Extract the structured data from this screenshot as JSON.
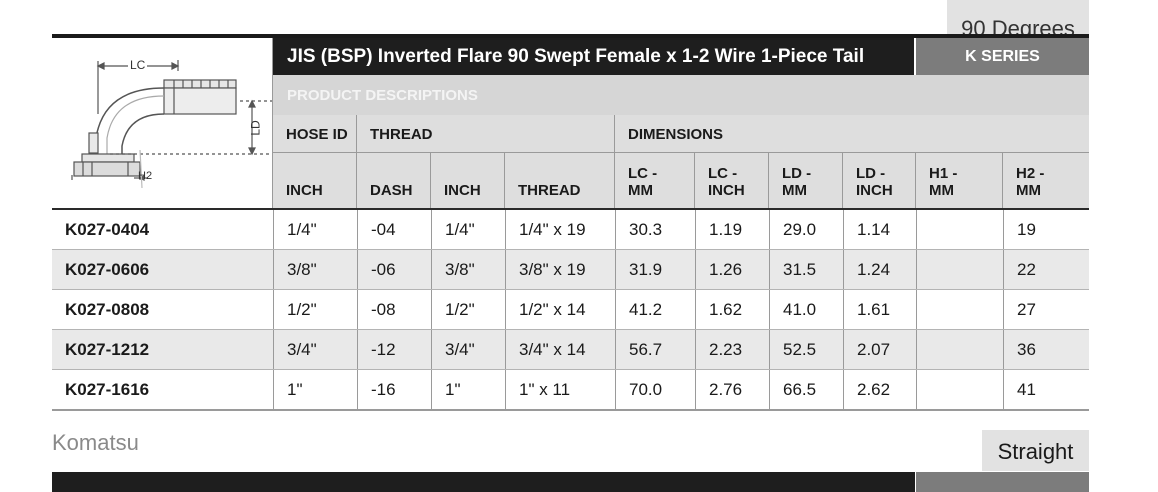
{
  "top_tab": "90 Degrees",
  "title": "JIS (BSP) Inverted Flare 90 Swept Female x 1-2 Wire 1-Piece Tail",
  "series": "K SERIES",
  "section_label": "PRODUCT DESCRIPTIONS",
  "diagram": {
    "lc": "LC",
    "ld": "LD",
    "h2": "H2"
  },
  "group_headers": {
    "hose_id": "HOSE ID",
    "thread": "THREAD",
    "dimensions": "DIMENSIONS"
  },
  "columns": {
    "inch": "INCH",
    "dash": "DASH",
    "inch2": "INCH",
    "thread": "THREAD",
    "lc_mm": "LC - MM",
    "lc_inch": "LC - INCH",
    "ld_mm": "LD - MM",
    "ld_inch": "LD - INCH",
    "h1_mm": "H1 - MM",
    "h2_mm": "H2 - MM"
  },
  "rows": [
    {
      "part": "K027-0404",
      "hose_inch": "1/4\"",
      "dash": "-04",
      "thread_inch": "1/4\"",
      "thread": "1/4\" x 19",
      "lc_mm": "30.3",
      "lc_inch": "1.19",
      "ld_mm": "29.0",
      "ld_inch": "1.14",
      "h1_mm": "",
      "h2_mm": "19"
    },
    {
      "part": "K027-0606",
      "hose_inch": "3/8\"",
      "dash": "-06",
      "thread_inch": "3/8\"",
      "thread": "3/8\" x 19",
      "lc_mm": "31.9",
      "lc_inch": "1.26",
      "ld_mm": "31.5",
      "ld_inch": "1.24",
      "h1_mm": "",
      "h2_mm": "22"
    },
    {
      "part": "K027-0808",
      "hose_inch": "1/2\"",
      "dash": "-08",
      "thread_inch": "1/2\"",
      "thread": "1/2\" x 14",
      "lc_mm": "41.2",
      "lc_inch": "1.62",
      "ld_mm": "41.0",
      "ld_inch": "1.61",
      "h1_mm": "",
      "h2_mm": "27"
    },
    {
      "part": "K027-1212",
      "hose_inch": "3/4\"",
      "dash": "-12",
      "thread_inch": "3/4\"",
      "thread": "3/4\" x 14",
      "lc_mm": "56.7",
      "lc_inch": "2.23",
      "ld_mm": "52.5",
      "ld_inch": "2.07",
      "h1_mm": "",
      "h2_mm": "36"
    },
    {
      "part": "K027-1616",
      "hose_inch": "1\"",
      "dash": "-16",
      "thread_inch": "1\"",
      "thread": "1\" x 11",
      "lc_mm": "70.0",
      "lc_inch": "2.76",
      "ld_mm": "66.5",
      "ld_inch": "2.62",
      "h1_mm": "",
      "h2_mm": "41"
    }
  ],
  "footer": {
    "left_label": "Komatsu",
    "right_tab": "Straight"
  }
}
